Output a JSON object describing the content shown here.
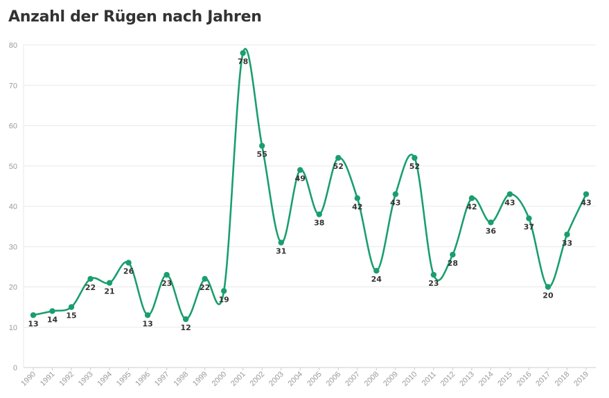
{
  "chart_data": {
    "type": "line",
    "title": "Anzahl der Rügen nach Jahren",
    "x": [
      "1990",
      "1991",
      "1992",
      "1993",
      "1994",
      "1995",
      "1996",
      "1997",
      "1998",
      "1999",
      "2000",
      "2001",
      "2002",
      "2003",
      "2004",
      "2005",
      "2006",
      "2007",
      "2008",
      "2009",
      "2010",
      "2011",
      "2012",
      "2013",
      "2014",
      "2015",
      "2016",
      "2017",
      "2018",
      "2019"
    ],
    "series": [
      {
        "values": [
          13,
          14,
          15,
          22,
          21,
          26,
          13,
          23,
          12,
          22,
          19,
          78,
          55,
          31,
          49,
          38,
          52,
          42,
          24,
          43,
          52,
          23,
          28,
          42,
          36,
          43,
          37,
          20,
          33,
          43
        ]
      }
    ],
    "ylim": [
      0,
      80
    ],
    "yticks": [
      0,
      10,
      20,
      30,
      40,
      50,
      60,
      70,
      80
    ],
    "grid": true,
    "legend": "none",
    "line_color": "#1a9e6e"
  }
}
